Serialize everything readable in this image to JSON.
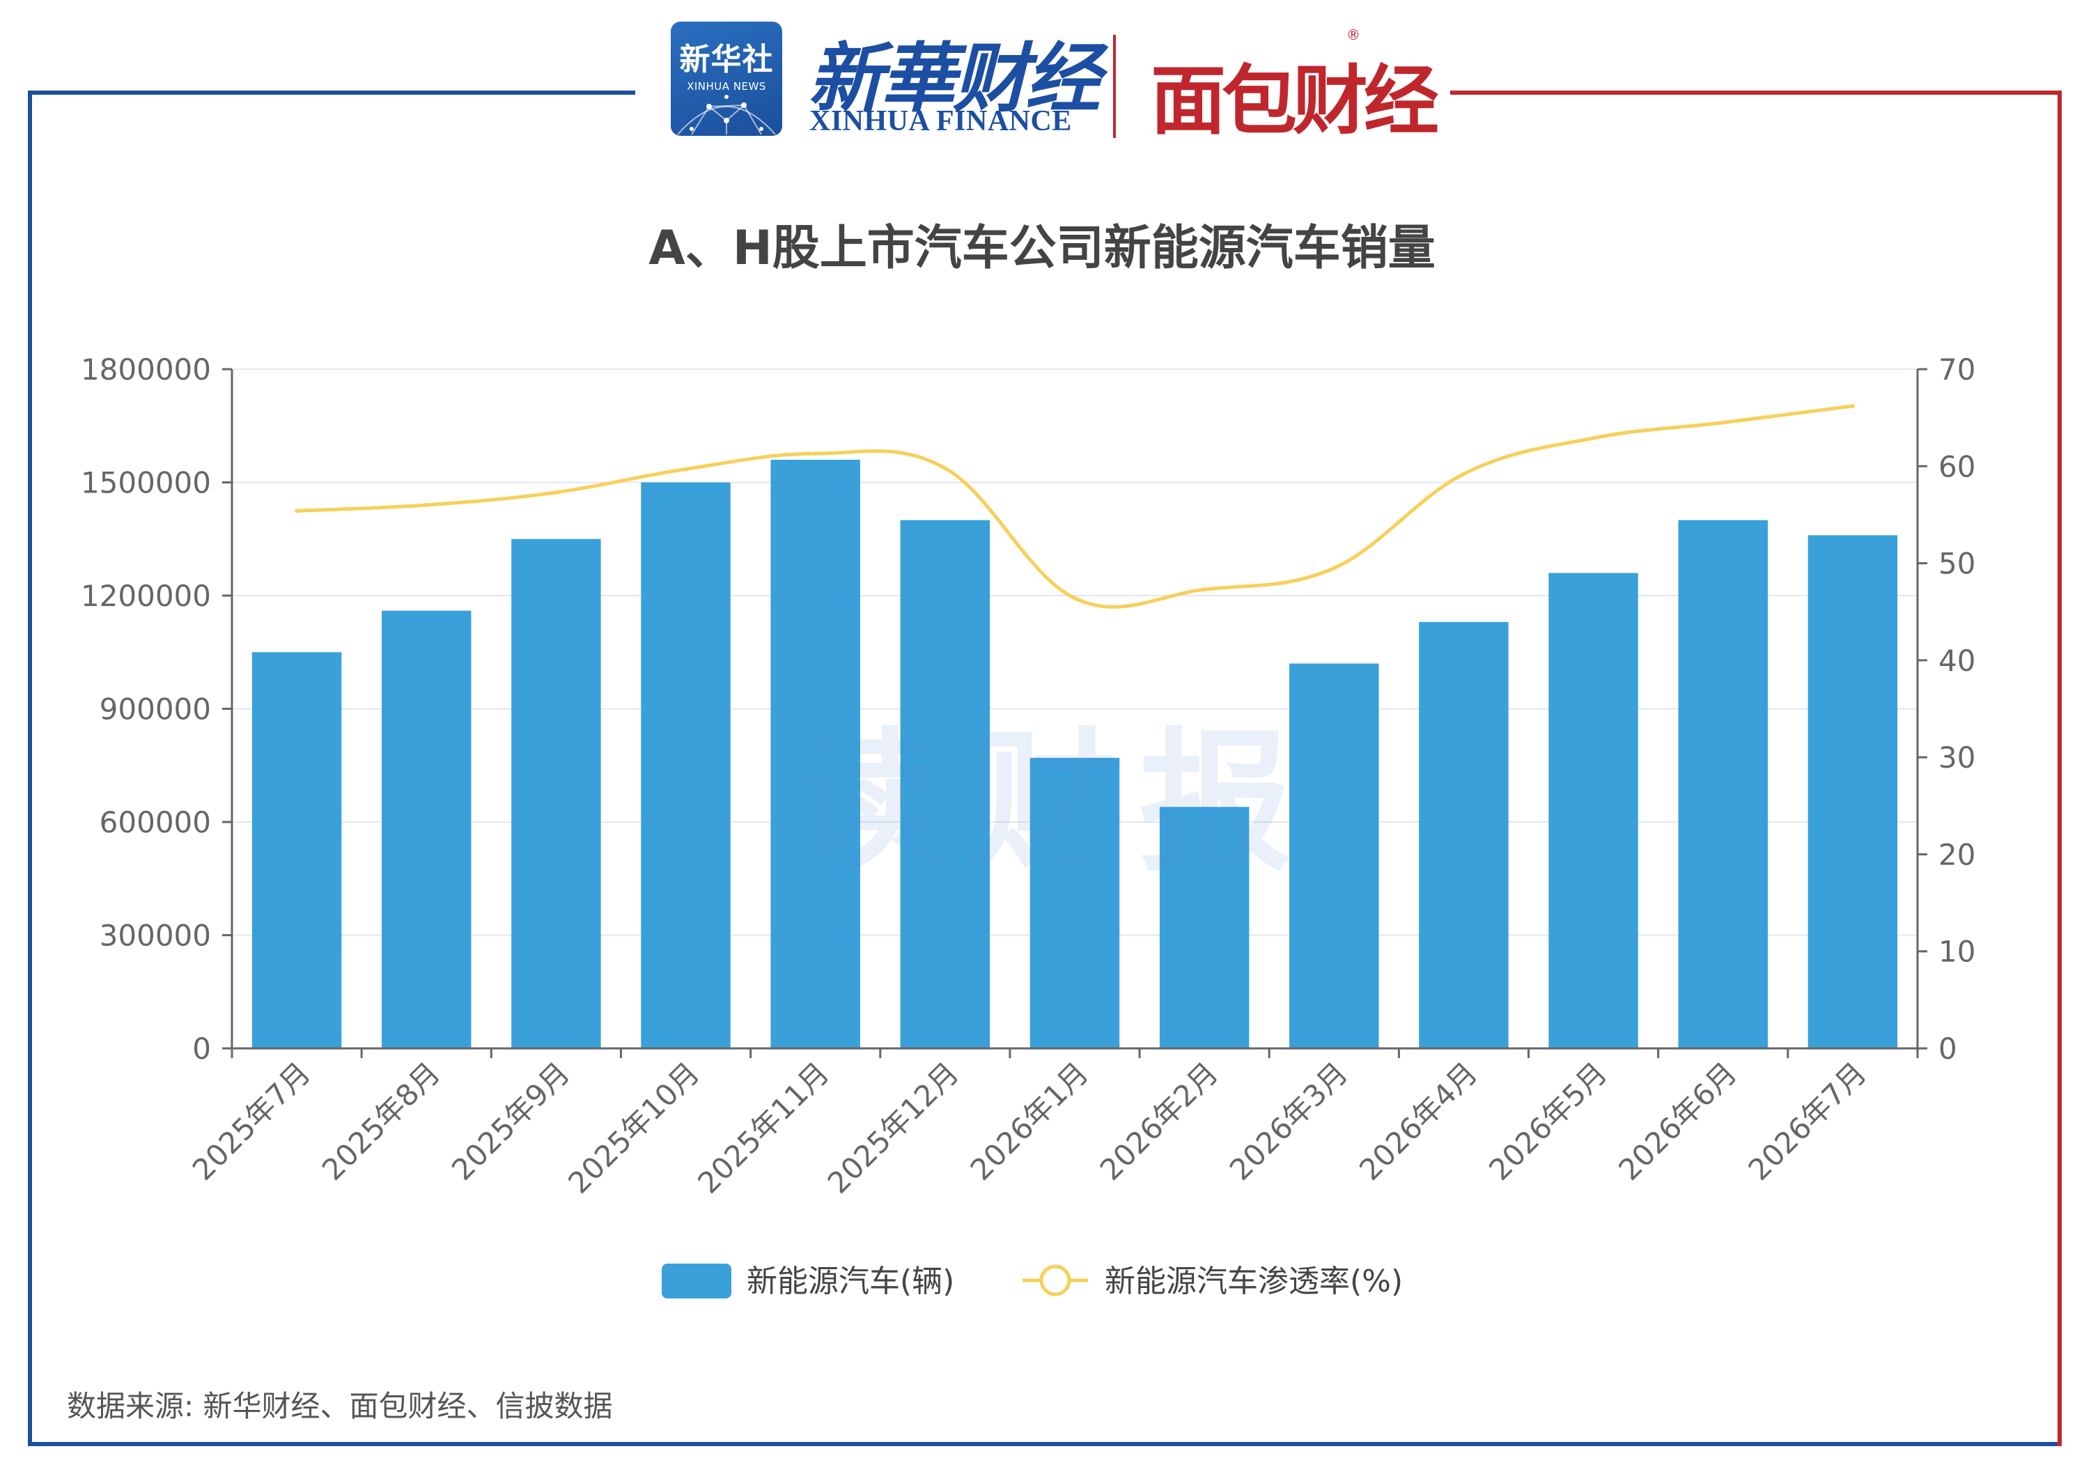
{
  "header": {
    "logo_xinhua_cn": "新华社",
    "logo_xinhua_en": "XINHUA NEWS",
    "finance_cn": "新華财经",
    "finance_en": "XINHUA FINANCE",
    "mianbao": "面包财经",
    "registered": "®"
  },
  "watermark": "读财报",
  "source": "数据来源: 新华财经、面包财经、信披数据",
  "colors": {
    "frame_blue": "#1c4f9c",
    "frame_red": "#c0272d",
    "bar": "#3aa0d9",
    "line": "#f7d05a",
    "axis_text": "#666666",
    "grid": "#e3e7f0"
  },
  "chart_data": {
    "type": "bar",
    "title": "A、H股上市汽车公司新能源汽车销量",
    "categories": [
      "2025年7月",
      "2025年8月",
      "2025年9月",
      "2025年10月",
      "2025年11月",
      "2025年12月",
      "2026年1月",
      "2026年2月",
      "2026年3月",
      "2026年4月",
      "2026年5月",
      "2026年6月",
      "2026年7月"
    ],
    "series": [
      {
        "name": "新能源汽车(辆)",
        "type": "bar",
        "axis": "left",
        "values": [
          1050000,
          1160000,
          1350000,
          1500000,
          1560000,
          1400000,
          770000,
          640000,
          1020000,
          1130000,
          1260000,
          1400000,
          1360000
        ]
      },
      {
        "name": "新能源汽车渗透率(%)",
        "type": "line",
        "axis": "right",
        "values": [
          55.4,
          56.0,
          57.3,
          59.7,
          61.3,
          59.8,
          46.4,
          47.3,
          49.5,
          59.2,
          62.9,
          64.5,
          66.2
        ]
      }
    ],
    "y_left": {
      "min": 0,
      "max": 1800000,
      "ticks": [
        "0",
        "300000",
        "600000",
        "900000",
        "1200000",
        "1500000",
        "1800000"
      ]
    },
    "y_right": {
      "min": 0,
      "max": 70,
      "ticks": [
        "0",
        "10",
        "20",
        "30",
        "40",
        "50",
        "60",
        "70"
      ]
    },
    "grid": true,
    "legend_position": "bottom"
  }
}
